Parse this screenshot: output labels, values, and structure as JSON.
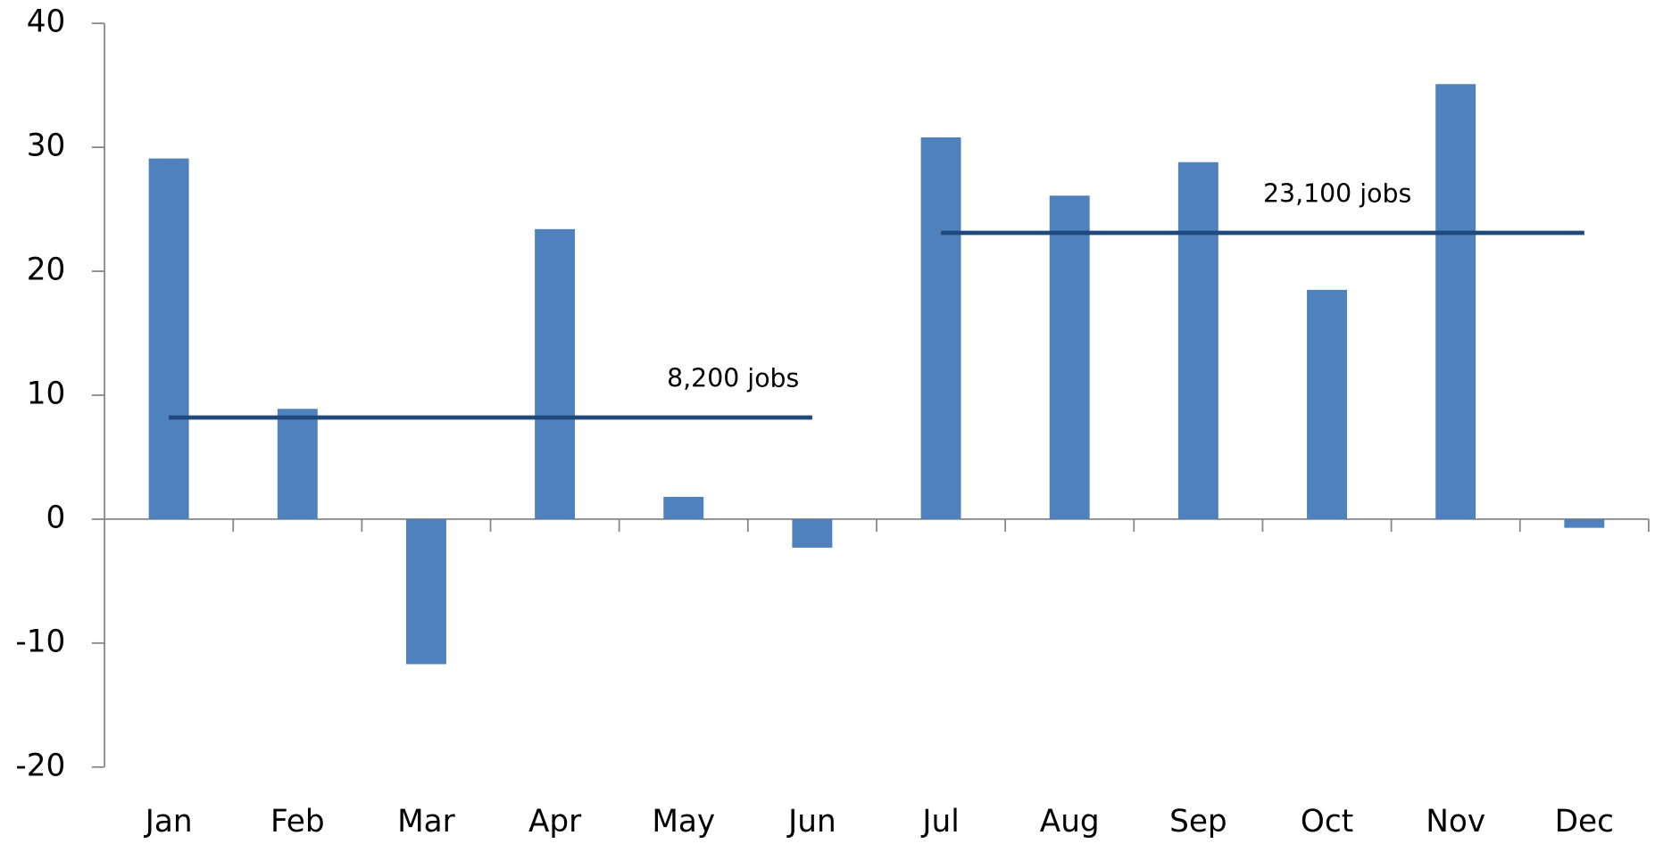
{
  "chart_data": {
    "type": "bar",
    "categories": [
      "Jan",
      "Feb",
      "Mar",
      "Apr",
      "May",
      "Jun",
      "Jul",
      "Aug",
      "Sep",
      "Oct",
      "Nov",
      "Dec"
    ],
    "values": [
      29.1,
      8.9,
      -11.7,
      23.4,
      1.8,
      -2.3,
      30.8,
      26.1,
      28.8,
      18.5,
      35.1,
      -0.7
    ],
    "color": "#4f81bd",
    "ylim": [
      -20,
      40
    ],
    "yticks": [
      -20,
      -10,
      0,
      10,
      20,
      30,
      40
    ],
    "averages": [
      {
        "value": 8.2,
        "label": "8,200 jobs",
        "start": "Jan",
        "end": "Jun"
      },
      {
        "value": 23.1,
        "label": "23,100 jobs",
        "start": "Jul",
        "end": "Dec"
      }
    ],
    "average_color": "#1f497d"
  }
}
